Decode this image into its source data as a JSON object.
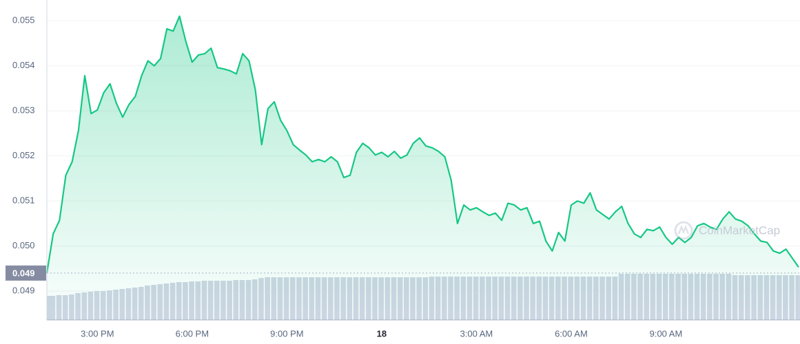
{
  "chart_data": {
    "type": "line",
    "watermark": "CoinMarketCap",
    "categories": [
      null,
      null,
      null,
      null,
      null,
      null,
      null,
      null,
      "3:00 PM",
      null,
      null,
      null,
      null,
      null,
      null,
      null,
      null,
      null,
      null,
      null,
      null,
      null,
      null,
      "6:00 PM",
      null,
      null,
      null,
      null,
      null,
      null,
      null,
      null,
      null,
      null,
      null,
      null,
      null,
      null,
      "9:00 PM",
      null,
      null,
      null,
      null,
      null,
      null,
      null,
      null,
      null,
      null,
      null,
      null,
      null,
      null,
      "18",
      null,
      null,
      null,
      null,
      null,
      null,
      null,
      null,
      null,
      null,
      null,
      null,
      null,
      null,
      "3:00 AM",
      null,
      null,
      null,
      null,
      null,
      null,
      null,
      null,
      null,
      null,
      null,
      null,
      null,
      null,
      "6:00 AM",
      null,
      null,
      null,
      null,
      null,
      null,
      null,
      null,
      null,
      null,
      null,
      null,
      null,
      null,
      "9:00 AM",
      null,
      null,
      null,
      null,
      null,
      null,
      null,
      null,
      null,
      null,
      null,
      null,
      null,
      null,
      null,
      null,
      null,
      null,
      null,
      null,
      null
    ],
    "series": [
      {
        "color": "#16c784",
        "values": [
          0.0494,
          0.05027,
          0.05057,
          0.05157,
          0.05187,
          0.05256,
          0.05378,
          0.05294,
          0.05302,
          0.0534,
          0.0536,
          0.05317,
          0.05286,
          0.05314,
          0.05332,
          0.05378,
          0.05411,
          0.054,
          0.05416,
          0.05482,
          0.05477,
          0.0551,
          0.05454,
          0.05408,
          0.05424,
          0.05427,
          0.05439,
          0.05396,
          0.05393,
          0.05389,
          0.05382,
          0.05427,
          0.05411,
          0.05347,
          0.05225,
          0.05305,
          0.0532,
          0.05279,
          0.05256,
          0.05225,
          0.05213,
          0.05202,
          0.05187,
          0.05192,
          0.05187,
          0.05198,
          0.05187,
          0.05152,
          0.05157,
          0.05208,
          0.05228,
          0.05218,
          0.05202,
          0.05208,
          0.05198,
          0.0521,
          0.05195,
          0.05202,
          0.05228,
          0.0524,
          0.05222,
          0.05218,
          0.0521,
          0.05198,
          0.05146,
          0.0505,
          0.05091,
          0.0508,
          0.05085,
          0.05076,
          0.05068,
          0.05073,
          0.05057,
          0.05095,
          0.05091,
          0.0508,
          0.05085,
          0.0505,
          0.05055,
          0.05011,
          0.04989,
          0.0503,
          0.05011,
          0.05091,
          0.051,
          0.05095,
          0.05118,
          0.0508,
          0.0507,
          0.0506,
          0.05076,
          0.05088,
          0.0505,
          0.05027,
          0.05019,
          0.05037,
          0.05034,
          0.05042,
          0.05019,
          0.05004,
          0.05019,
          0.05008,
          0.05019,
          0.05045,
          0.0505,
          0.05042,
          0.05037,
          0.0506,
          0.05076,
          0.0506,
          0.05055,
          0.05045,
          0.05027,
          0.05011,
          0.05008,
          0.04989,
          0.04984,
          0.04993,
          0.04973,
          0.04953
        ]
      }
    ],
    "volume": {
      "color": "#cfd6e4",
      "lim": [
        0,
        70
      ],
      "values": [
        35,
        35,
        36,
        36,
        37,
        39,
        40,
        41,
        42,
        42,
        43,
        44,
        45,
        46,
        47,
        48,
        50,
        51,
        52,
        53,
        54,
        55,
        55,
        56,
        56,
        57,
        57,
        57,
        57,
        57,
        58,
        58,
        58,
        59,
        61,
        62,
        62,
        62,
        62,
        62,
        62,
        62,
        62,
        62,
        62,
        62,
        62,
        62,
        62,
        62,
        62,
        62,
        62,
        62,
        62,
        62,
        62,
        62,
        62,
        62,
        62,
        63,
        63,
        63,
        63,
        63,
        63,
        63,
        63,
        63,
        63,
        63,
        63,
        63,
        63,
        63,
        63,
        63,
        63,
        63,
        63,
        63,
        63,
        63,
        63,
        63,
        63,
        63,
        63,
        63,
        63,
        67,
        67,
        67,
        67,
        67,
        67,
        67,
        67,
        67,
        67,
        67,
        67,
        67,
        67,
        67,
        67,
        67,
        67,
        65,
        65,
        65,
        65,
        65,
        65,
        65,
        65,
        65,
        65,
        65,
        65
      ]
    },
    "current_price": {
      "value": 0.0494,
      "label": "0.049"
    },
    "ylim": [
      0.04836,
      0.05546
    ],
    "yticks": [
      0.049,
      {
        "value": 0.05,
        "label": "0.050"
      },
      0.051,
      0.052,
      0.053,
      0.054,
      0.055
    ],
    "grid": true
  }
}
